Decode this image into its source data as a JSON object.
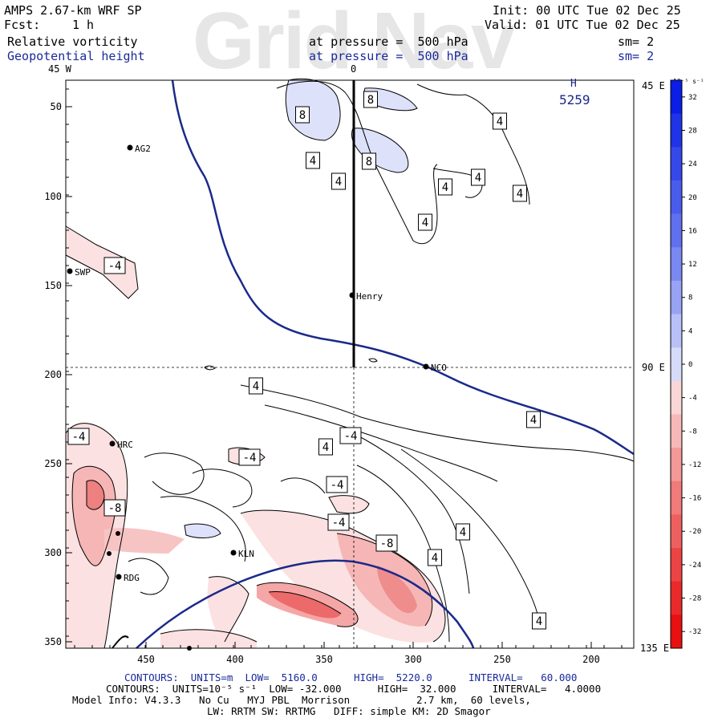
{
  "watermark": "Grid Nav",
  "header": {
    "model": "AMPS 2.67-km WRF SP",
    "fcst_label": "Fcst:",
    "fcst_value": "1 h",
    "field1": "Relative vorticity",
    "field2": "Geopotential height",
    "pressure1": "at pressure =  500 hPa",
    "pressure2": "at pressure =  500 hPa",
    "init": "Init: 00 UTC Tue 02 Dec 25",
    "valid": "Valid: 01 UTC Tue 02 Dec 25",
    "sm1": "sm= 2",
    "sm2": "sm= 2"
  },
  "map": {
    "top_lon_labels": [
      "45 W",
      "0"
    ],
    "right_lon_labels": [
      "45 E",
      "90 E",
      "135 E"
    ],
    "y_ticks": [
      "50",
      "100",
      "150",
      "200",
      "250",
      "300",
      "350"
    ],
    "x_ticks": [
      "450",
      "400",
      "350",
      "300",
      "250",
      "200"
    ],
    "high_label": "H",
    "high_value": "5259",
    "stations": [
      "AG2",
      "SWP",
      "Henry",
      "NCO",
      "HRC",
      "KLN",
      "RDG"
    ],
    "contour_labels": [
      "8",
      "8",
      "8",
      "4",
      "4",
      "4",
      "4",
      "4",
      "4",
      "-4",
      "4",
      "4",
      "4",
      "-4",
      "-4",
      "-4",
      "-8",
      "-4",
      "-4",
      "4",
      "4",
      "4",
      "-8",
      "4"
    ]
  },
  "colorbar": {
    "unit": "10⁻⁵ s⁻¹",
    "levels": [
      "32",
      "28",
      "24",
      "20",
      "16",
      "12",
      "8",
      "4",
      "0",
      "-4",
      "-8",
      "-12",
      "-16",
      "-20",
      "-24",
      "-28",
      "-32"
    ],
    "colors": [
      "#0a1ee6",
      "#1f33e8",
      "#3548ea",
      "#4a5cec",
      "#6070ee",
      "#7a88f1",
      "#98a3f4",
      "#b8c0f7",
      "#d6dbfa",
      "#fad6d6",
      "#f7b8b8",
      "#f49898",
      "#f17a7a",
      "#ee6060",
      "#ec4444",
      "#ea2a2a",
      "#e81010"
    ]
  },
  "footer": {
    "line1": "CONTOURS:  UNITS=m  LOW=  5160.0      HIGH=  5220.0      INTERVAL=   60.000",
    "line2": "CONTOURS:  UNITS=10⁻⁵ s⁻¹  LOW= -32.000      HIGH=  32.000      INTERVAL=   4.0000",
    "line3": "Model Info: V4.3.3   No Cu   MYJ PBL  Morrison           2.7 km,  60 levels,",
    "line4": "LW: RRTM SW: RRTMG   DIFF: simple KM: 2D Smagor"
  }
}
